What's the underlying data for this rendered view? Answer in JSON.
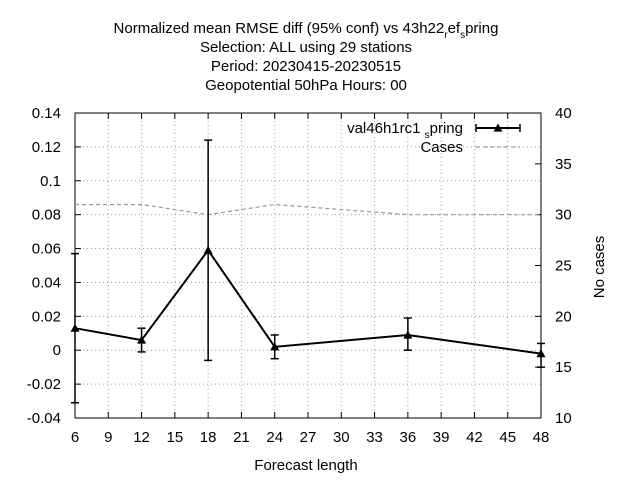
{
  "chart_data": {
    "type": "line",
    "title_lines": [
      "Normalized mean RMSE diff (95% conf) vs 43h22_ref_spring",
      "Selection: ALL using    29 stations",
      "Period: 20230415-20230515",
      "Geopotential 50hPa   Hours:  00"
    ],
    "xlabel": "Forecast length",
    "ylabel": "",
    "y2label": "No cases",
    "xlim": [
      6,
      48
    ],
    "ylim": [
      -0.04,
      0.14
    ],
    "y2lim": [
      10,
      40
    ],
    "xticks": [
      6,
      9,
      12,
      15,
      18,
      21,
      24,
      27,
      30,
      33,
      36,
      39,
      42,
      45,
      48
    ],
    "yticks": [
      -0.04,
      -0.02,
      0,
      0.02,
      0.04,
      0.06,
      0.08,
      0.1,
      0.12,
      0.14
    ],
    "yticklabels": [
      "-0.04",
      "-0.02",
      "0",
      "0.02",
      "0.04",
      "0.06",
      "0.08",
      "0.1",
      "0.12",
      "0.14"
    ],
    "y2ticks": [
      10,
      15,
      20,
      25,
      30,
      35,
      40
    ],
    "grid": true,
    "legend_position": "top-right",
    "series": [
      {
        "name": "val46h1rc1_spring",
        "legend_main": "val46h1rc1",
        "legend_sub": "s",
        "legend_tail": "pring",
        "axis": "y1",
        "style": "line-errorbars-triangles",
        "color": "#000000",
        "x": [
          6,
          12,
          18,
          24,
          36,
          48
        ],
        "y": [
          0.013,
          0.006,
          0.059,
          0.002,
          0.009,
          -0.002
        ],
        "err_low": [
          -0.031,
          -0.001,
          -0.006,
          -0.005,
          0.0,
          -0.01
        ],
        "err_high": [
          0.057,
          0.013,
          0.124,
          0.009,
          0.019,
          0.004
        ]
      },
      {
        "name": "Cases",
        "axis": "y2",
        "style": "dashed",
        "color": "#999999",
        "x": [
          6,
          12,
          18,
          24,
          36,
          48
        ],
        "y": [
          31,
          31,
          30,
          31,
          30,
          30
        ]
      }
    ]
  }
}
